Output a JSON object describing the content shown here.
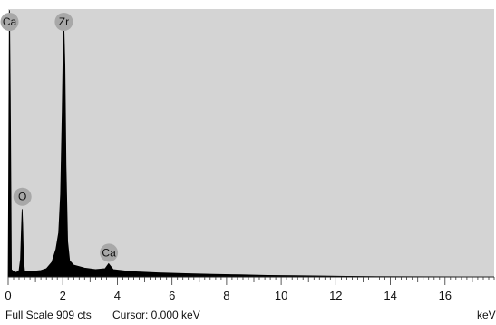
{
  "chart_data": {
    "type": "line",
    "title": "",
    "xlabel": "",
    "ylabel": "",
    "x_unit": "keV",
    "xlim": [
      0,
      17.8
    ],
    "ylim": [
      0,
      909
    ],
    "x_ticks": [
      0,
      2,
      4,
      6,
      8,
      10,
      12,
      14,
      16
    ],
    "tick_labels": [
      "0",
      "2",
      "4",
      "6",
      "8",
      "10",
      "12",
      "14",
      "16"
    ],
    "grid": false,
    "background_color": "#d4d4d4",
    "spectrum_color": "#000000",
    "marker_color": "#a8a8a8",
    "series": [
      {
        "values": [
          [
            0.0,
            0
          ],
          [
            0.05,
            905
          ],
          [
            0.08,
            600
          ],
          [
            0.12,
            25
          ],
          [
            0.2,
            18
          ],
          [
            0.3,
            15
          ],
          [
            0.4,
            22
          ],
          [
            0.45,
            60
          ],
          [
            0.48,
            150
          ],
          [
            0.51,
            230
          ],
          [
            0.53,
            180
          ],
          [
            0.56,
            60
          ],
          [
            0.6,
            20
          ],
          [
            0.8,
            18
          ],
          [
            1.0,
            20
          ],
          [
            1.2,
            22
          ],
          [
            1.4,
            28
          ],
          [
            1.6,
            50
          ],
          [
            1.75,
            95
          ],
          [
            1.85,
            150
          ],
          [
            1.92,
            280
          ],
          [
            1.98,
            560
          ],
          [
            2.02,
            800
          ],
          [
            2.04,
            860
          ],
          [
            2.08,
            720
          ],
          [
            2.12,
            380
          ],
          [
            2.18,
            120
          ],
          [
            2.25,
            55
          ],
          [
            2.4,
            40
          ],
          [
            2.8,
            30
          ],
          [
            3.2,
            25
          ],
          [
            3.55,
            28
          ],
          [
            3.68,
            45
          ],
          [
            3.74,
            38
          ],
          [
            3.85,
            25
          ],
          [
            4.5,
            18
          ],
          [
            5.5,
            14
          ],
          [
            6.5,
            11
          ],
          [
            7.5,
            9
          ],
          [
            8.5,
            7
          ],
          [
            9.5,
            5
          ],
          [
            10.5,
            4
          ],
          [
            11.5,
            3
          ],
          [
            12.5,
            2
          ],
          [
            13.5,
            1
          ],
          [
            17.8,
            0
          ]
        ]
      }
    ],
    "peaks": [
      {
        "label": "Ca",
        "x": 0.05,
        "y": 905
      },
      {
        "label": "Zr",
        "x": 2.04,
        "y": 860
      },
      {
        "label": "O",
        "x": 0.52,
        "y": 235
      },
      {
        "label": "Ca",
        "x": 3.69,
        "y": 45
      }
    ]
  },
  "status": {
    "full_scale": "Full Scale 909 cts",
    "cursor": "Cursor: 0.000 keV",
    "unit_label": "keV"
  }
}
